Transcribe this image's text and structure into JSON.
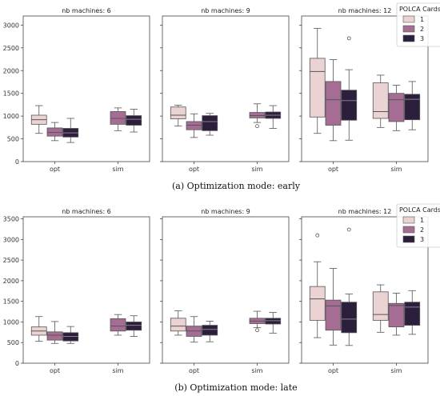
{
  "colors": {
    "1": "#ecd3d3",
    "2": "#a66d94",
    "3": "#2c1f3b",
    "axis": "#444444",
    "median": "#555555"
  },
  "chart_data": [
    {
      "type": "box",
      "caption": "(a) Optimization mode: early",
      "ylim": [
        0,
        3200
      ],
      "yticks": [
        0,
        500,
        1000,
        1500,
        2000,
        2500,
        3000
      ],
      "legend": {
        "title": "POLCA Cards",
        "entries": [
          "1",
          "2",
          "3"
        ],
        "position": "upper-right of last panel"
      },
      "panels": [
        {
          "title": "nb machines: 6",
          "categories": [
            "opt",
            "sim"
          ],
          "boxes": [
            {
              "category": "opt",
              "card": "1",
              "whislo": 620,
              "q1": 820,
              "med": 920,
              "q3": 1020,
              "whishi": 1230,
              "fliers": []
            },
            {
              "category": "opt",
              "card": "2",
              "whislo": 460,
              "q1": 560,
              "med": 640,
              "q3": 740,
              "whishi": 860,
              "fliers": []
            },
            {
              "category": "opt",
              "card": "3",
              "whislo": 420,
              "q1": 540,
              "med": 630,
              "q3": 730,
              "whishi": 950,
              "fliers": []
            },
            {
              "category": "sim",
              "card": "2",
              "whislo": 680,
              "q1": 820,
              "med": 950,
              "q3": 1100,
              "whishi": 1180,
              "fliers": []
            },
            {
              "category": "sim",
              "card": "3",
              "whislo": 650,
              "q1": 800,
              "med": 930,
              "q3": 1010,
              "whishi": 1150,
              "fliers": []
            }
          ]
        },
        {
          "title": "nb machines: 9",
          "categories": [
            "opt",
            "sim"
          ],
          "boxes": [
            {
              "category": "opt",
              "card": "1",
              "whislo": 780,
              "q1": 940,
              "med": 1020,
              "q3": 1200,
              "whishi": 1240,
              "fliers": []
            },
            {
              "category": "opt",
              "card": "2",
              "whislo": 530,
              "q1": 700,
              "med": 800,
              "q3": 880,
              "whishi": 1050,
              "fliers": []
            },
            {
              "category": "opt",
              "card": "3",
              "whislo": 580,
              "q1": 680,
              "med": 880,
              "q3": 1010,
              "whishi": 1060,
              "fliers": []
            },
            {
              "category": "sim",
              "card": "2",
              "whislo": 860,
              "q1": 960,
              "med": 1010,
              "q3": 1080,
              "whishi": 1270,
              "fliers": [
                780
              ]
            },
            {
              "category": "sim",
              "card": "3",
              "whislo": 730,
              "q1": 950,
              "med": 1020,
              "q3": 1090,
              "whishi": 1230,
              "fliers": []
            }
          ]
        },
        {
          "title": "nb machines: 12",
          "categories": [
            "opt",
            "sim"
          ],
          "boxes": [
            {
              "category": "opt",
              "card": "1",
              "whislo": 620,
              "q1": 980,
              "med": 1980,
              "q3": 2270,
              "whishi": 2930,
              "fliers": []
            },
            {
              "category": "opt",
              "card": "2",
              "whislo": 460,
              "q1": 800,
              "med": 1360,
              "q3": 1760,
              "whishi": 2240,
              "fliers": []
            },
            {
              "category": "opt",
              "card": "3",
              "whislo": 470,
              "q1": 910,
              "med": 1340,
              "q3": 1570,
              "whishi": 2020,
              "fliers": [
                2710
              ]
            },
            {
              "category": "sim",
              "card": "1",
              "whislo": 750,
              "q1": 950,
              "med": 1100,
              "q3": 1730,
              "whishi": 1900,
              "fliers": []
            },
            {
              "category": "sim",
              "card": "2",
              "whislo": 680,
              "q1": 880,
              "med": 1360,
              "q3": 1500,
              "whishi": 1680,
              "fliers": []
            },
            {
              "category": "sim",
              "card": "3",
              "whislo": 700,
              "q1": 920,
              "med": 1370,
              "q3": 1480,
              "whishi": 1760,
              "fliers": []
            }
          ]
        }
      ]
    },
    {
      "type": "box",
      "caption": "(b) Optimization mode: late",
      "ylim": [
        0,
        3550
      ],
      "yticks": [
        0,
        500,
        1000,
        1500,
        2000,
        2500,
        3000,
        3500
      ],
      "legend": {
        "title": "POLCA Cards",
        "entries": [
          "1",
          "2",
          "3"
        ],
        "position": "upper-right of last panel"
      },
      "panels": [
        {
          "title": "nb machines: 6",
          "categories": [
            "opt",
            "sim"
          ],
          "boxes": [
            {
              "category": "opt",
              "card": "1",
              "whislo": 530,
              "q1": 680,
              "med": 780,
              "q3": 880,
              "whishi": 1130,
              "fliers": []
            },
            {
              "category": "opt",
              "card": "2",
              "whislo": 480,
              "q1": 560,
              "med": 680,
              "q3": 760,
              "whishi": 1010,
              "fliers": []
            },
            {
              "category": "opt",
              "card": "3",
              "whislo": 480,
              "q1": 540,
              "med": 650,
              "q3": 740,
              "whishi": 890,
              "fliers": []
            },
            {
              "category": "sim",
              "card": "2",
              "whislo": 680,
              "q1": 780,
              "med": 900,
              "q3": 1080,
              "whishi": 1180,
              "fliers": []
            },
            {
              "category": "sim",
              "card": "3",
              "whislo": 650,
              "q1": 800,
              "med": 920,
              "q3": 1000,
              "whishi": 1150,
              "fliers": []
            }
          ]
        },
        {
          "title": "nb machines: 9",
          "categories": [
            "opt",
            "sim"
          ],
          "boxes": [
            {
              "category": "opt",
              "card": "1",
              "whislo": 680,
              "q1": 780,
              "med": 900,
              "q3": 1090,
              "whishi": 1270,
              "fliers": []
            },
            {
              "category": "opt",
              "card": "2",
              "whislo": 510,
              "q1": 650,
              "med": 780,
              "q3": 900,
              "whishi": 1130,
              "fliers": []
            },
            {
              "category": "opt",
              "card": "3",
              "whislo": 520,
              "q1": 680,
              "med": 820,
              "q3": 920,
              "whishi": 1020,
              "fliers": []
            },
            {
              "category": "sim",
              "card": "2",
              "whislo": 860,
              "q1": 960,
              "med": 1020,
              "q3": 1090,
              "whishi": 1260,
              "fliers": [
                800
              ]
            },
            {
              "category": "sim",
              "card": "3",
              "whislo": 730,
              "q1": 950,
              "med": 1030,
              "q3": 1090,
              "whishi": 1230,
              "fliers": []
            }
          ]
        },
        {
          "title": "nb machines: 12",
          "categories": [
            "opt",
            "sim"
          ],
          "boxes": [
            {
              "category": "opt",
              "card": "1",
              "whislo": 620,
              "q1": 1040,
              "med": 1560,
              "q3": 1860,
              "whishi": 2460,
              "fliers": [
                3100
              ]
            },
            {
              "category": "opt",
              "card": "2",
              "whislo": 440,
              "q1": 800,
              "med": 1390,
              "q3": 1530,
              "whishi": 2300,
              "fliers": []
            },
            {
              "category": "opt",
              "card": "3",
              "whislo": 430,
              "q1": 740,
              "med": 1070,
              "q3": 1480,
              "whishi": 1680,
              "fliers": [
                3240
              ]
            },
            {
              "category": "sim",
              "card": "1",
              "whislo": 750,
              "q1": 1040,
              "med": 1180,
              "q3": 1730,
              "whishi": 1900,
              "fliers": []
            },
            {
              "category": "sim",
              "card": "2",
              "whislo": 680,
              "q1": 880,
              "med": 1400,
              "q3": 1450,
              "whishi": 1700,
              "fliers": []
            },
            {
              "category": "sim",
              "card": "3",
              "whislo": 700,
              "q1": 920,
              "med": 1360,
              "q3": 1480,
              "whishi": 1760,
              "fliers": []
            }
          ]
        }
      ]
    }
  ]
}
